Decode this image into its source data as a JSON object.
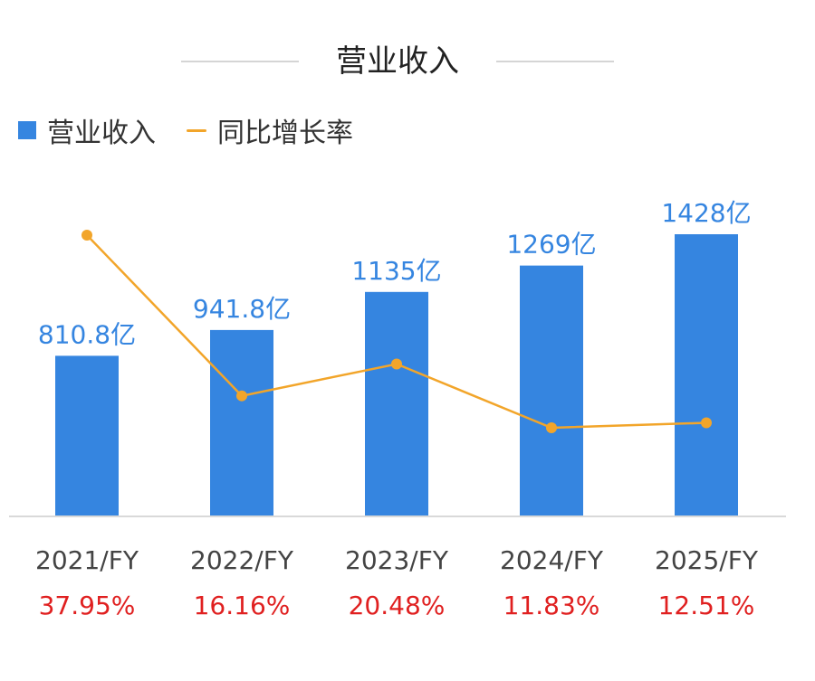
{
  "chart_data": {
    "type": "bar",
    "title": "营业收入",
    "categories": [
      "2021/FY",
      "2022/FY",
      "2023/FY",
      "2024/FY",
      "2025/FY"
    ],
    "series": [
      {
        "name": "营业收入",
        "kind": "bar",
        "values": [
          810.8,
          941.8,
          1135,
          1269,
          1428
        ],
        "labels": [
          "810.8亿",
          "941.8亿",
          "1135亿",
          "1269亿",
          "1428亿"
        ],
        "unit": "亿",
        "color": "#3585e0"
      },
      {
        "name": "同比增长率",
        "kind": "line",
        "values": [
          37.95,
          16.16,
          20.48,
          11.83,
          12.51
        ],
        "labels": [
          "37.95%",
          "16.16%",
          "20.48%",
          "11.83%",
          "12.51%"
        ],
        "unit": "%",
        "color": "#f2a52a"
      }
    ],
    "growth_label_color": "#e02020",
    "legend_position": "top-left",
    "grid": false
  }
}
